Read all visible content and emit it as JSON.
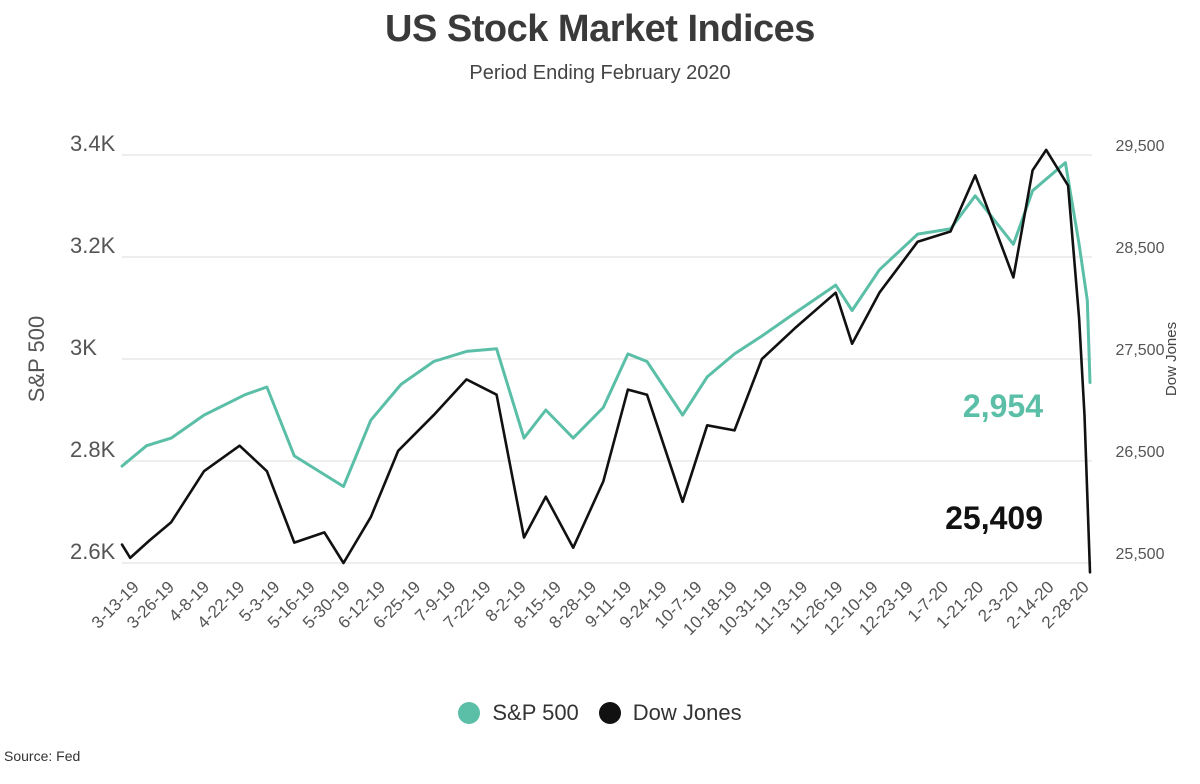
{
  "title": "US Stock Market Indices",
  "subtitle": "Period Ending February 2020",
  "source": "Source:  Fed",
  "colors": {
    "sp500": "#5bbfa8",
    "dow": "#111111",
    "grid": "#dddddd"
  },
  "chart_data": {
    "type": "line",
    "title": "US Stock Market Indices",
    "subtitle": "Period Ending February 2020",
    "xlabel": "",
    "ylabel_left": "S&P 500",
    "ylabel_right": "Dow Jones",
    "x_range": [
      "3-11-19",
      "2-28-20"
    ],
    "y_left_range": [
      2600,
      3400
    ],
    "y_right_range": [
      25500,
      29500
    ],
    "y_left_ticks": [
      2600,
      2800,
      3000,
      3200,
      3400
    ],
    "y_left_tick_labels": [
      "2.6K",
      "2.8K",
      "3K",
      "3.2K",
      "3.4K"
    ],
    "y_right_ticks": [
      25500,
      26500,
      27500,
      28500,
      29500
    ],
    "y_right_tick_labels": [
      "25,500",
      "26,500",
      "27,500",
      "28,500",
      "29,500"
    ],
    "x_tick_labels": [
      "3-13-19",
      "3-26-19",
      "4-8-19",
      "4-22-19",
      "5-3-19",
      "5-16-19",
      "5-30-19",
      "6-12-19",
      "6-25-19",
      "7-9-19",
      "7-22-19",
      "8-2-19",
      "8-15-19",
      "8-28-19",
      "9-11-19",
      "9-24-19",
      "10-7-19",
      "10-18-19",
      "10-31-19",
      "11-13-19",
      "11-26-19",
      "12-10-19",
      "12-23-19",
      "1-7-20",
      "1-21-20",
      "2-3-20",
      "2-14-20",
      "2-28-20"
    ],
    "grid": true,
    "legend_position": "bottom-center",
    "series": [
      {
        "name": "S&P 500",
        "axis": "left",
        "end_label": "2,954",
        "x": [
          "3-11-19",
          "3-20-19",
          "3-29-19",
          "4-10-19",
          "4-25-19",
          "5-3-19",
          "5-13-19",
          "5-31-19",
          "6-10-19",
          "6-21-19",
          "7-3-19",
          "7-15-19",
          "7-26-19",
          "8-5-19",
          "8-13-19",
          "8-23-19",
          "9-3-19",
          "9-12-19",
          "9-19-19",
          "10-2-19",
          "10-11-19",
          "10-21-19",
          "10-31-19",
          "11-12-19",
          "11-27-19",
          "12-3-19",
          "12-13-19",
          "12-27-19",
          "1-8-20",
          "1-17-20",
          "1-31-20",
          "2-7-20",
          "2-19-20",
          "2-24-20",
          "2-27-20",
          "2-28-20"
        ],
        "values": [
          2790,
          2830,
          2845,
          2890,
          2930,
          2945,
          2810,
          2750,
          2880,
          2950,
          2995,
          3015,
          3020,
          2845,
          2900,
          2845,
          2905,
          3010,
          2995,
          2890,
          2965,
          3010,
          3045,
          3090,
          3145,
          3095,
          3175,
          3245,
          3255,
          3320,
          3225,
          3330,
          3385,
          3225,
          3115,
          2954
        ]
      },
      {
        "name": "Dow Jones",
        "axis": "right",
        "end_label": "25,409",
        "x": [
          "3-11-19",
          "3-14-19",
          "3-21-19",
          "3-29-19",
          "4-10-19",
          "4-23-19",
          "5-3-19",
          "5-13-19",
          "5-24-19",
          "5-31-19",
          "6-10-19",
          "6-20-19",
          "7-3-19",
          "7-15-19",
          "7-26-19",
          "8-5-19",
          "8-13-19",
          "8-23-19",
          "9-3-19",
          "9-12-19",
          "9-19-19",
          "10-2-19",
          "10-11-19",
          "10-21-19",
          "10-31-19",
          "11-12-19",
          "11-27-19",
          "12-3-19",
          "12-13-19",
          "12-27-19",
          "1-8-20",
          "1-17-20",
          "1-31-20",
          "2-7-20",
          "2-12-20",
          "2-20-20",
          "2-24-20",
          "2-26-20",
          "2-28-20"
        ],
        "values": [
          25680,
          25550,
          25720,
          25900,
          26400,
          26650,
          26400,
          25700,
          25800,
          25500,
          25950,
          26600,
          26950,
          27300,
          27150,
          25750,
          26150,
          25650,
          26300,
          27200,
          27150,
          26100,
          26850,
          26800,
          27500,
          27800,
          28150,
          27650,
          28150,
          28650,
          28750,
          29300,
          28300,
          29350,
          29550,
          29200,
          27900,
          26950,
          25409
        ]
      }
    ]
  },
  "legend": [
    {
      "label": "S&P 500",
      "color": "#5bbfa8"
    },
    {
      "label": "Dow Jones",
      "color": "#111111"
    }
  ]
}
